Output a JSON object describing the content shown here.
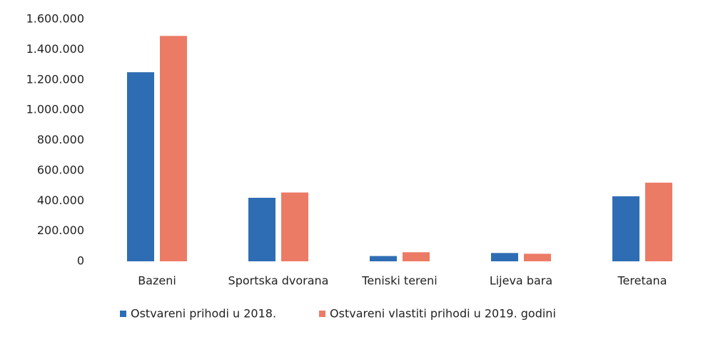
{
  "chart_data": {
    "type": "bar",
    "categories": [
      "Bazeni",
      "Sportska dvorana",
      "Teniski tereni",
      "Lijeva bara",
      "Teretana"
    ],
    "series": [
      {
        "name": "Ostvareni prihodi u 2018.",
        "color": "#2e6db4",
        "values": [
          1250000,
          420000,
          35000,
          55000,
          430000
        ]
      },
      {
        "name": "Ostvareni vlastiti prihodi u 2019. godini",
        "color": "#ec7b65",
        "values": [
          1490000,
          455000,
          60000,
          50000,
          520000
        ]
      }
    ],
    "ylim": [
      0,
      1600000
    ],
    "yticks": [
      0,
      {
        "value": 200000,
        "label": "200.000"
      },
      {
        "value": 400000,
        "label": "400.000"
      },
      {
        "value": 600000,
        "label": "600.000"
      },
      {
        "value": 800000,
        "label": "800.000"
      },
      {
        "value": 1000000,
        "label": "1.000.000"
      },
      {
        "value": 1200000,
        "label": "1.200.000"
      },
      {
        "value": 1400000,
        "label": "1.400.000"
      },
      {
        "value": 1600000,
        "label": "1.600.000"
      }
    ],
    "grid": false,
    "legend": "bottom"
  }
}
